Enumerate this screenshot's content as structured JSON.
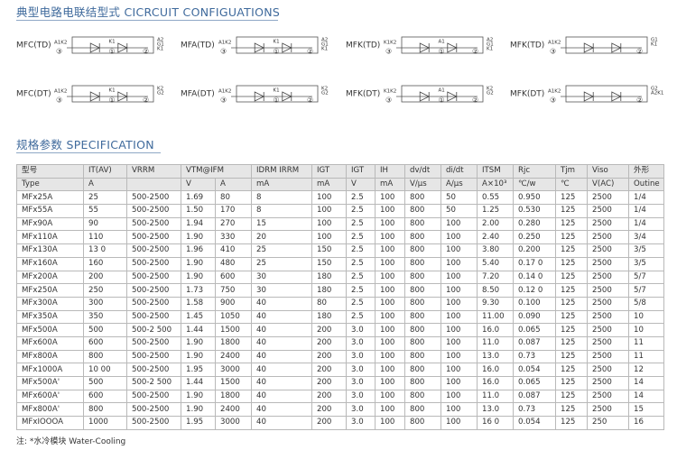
{
  "header": {
    "circuit_title": "典型电路电联结型式 CICRCUIT CONFIGUATIONS",
    "spec_title": "规格参数 SPECIFICATION"
  },
  "circuits": [
    {
      "label": "MFC(TD)",
      "left": "A1K2",
      "mid": "K1",
      "right": [
        "A2",
        "G1",
        "K1"
      ],
      "nums": [
        "③",
        "①",
        "②"
      ]
    },
    {
      "label": "MFA(TD)",
      "left": "A1K2",
      "mid": "K1",
      "right": [
        "A2",
        "G1",
        "K1"
      ],
      "nums": [
        "③",
        "①",
        "②"
      ]
    },
    {
      "label": "MFK(TD)",
      "left": "K1K2",
      "mid": "A1",
      "right": [
        "A2",
        "G1",
        "K1"
      ],
      "nums": [
        "③",
        "①",
        "②"
      ]
    },
    {
      "label": "MFK(TD)",
      "left": "A1K2",
      "right": [
        "G1",
        "K1"
      ],
      "nums": [
        "③",
        "②"
      ]
    },
    {
      "label": "MFC(DT)",
      "left": "A1K2",
      "mid": "K1",
      "right": [
        "K2",
        "G2"
      ],
      "nums": [
        "③",
        "①",
        "②"
      ]
    },
    {
      "label": "MFA(DT)",
      "left": "A1K2",
      "mid": "K1",
      "right": [
        "K2",
        "G2"
      ],
      "nums": [
        "③",
        "①",
        "②"
      ]
    },
    {
      "label": "MFK(DT)",
      "left": "K1K2",
      "mid": "A1",
      "right": [
        "K2",
        "G2"
      ],
      "nums": [
        "③",
        "①",
        "②"
      ]
    },
    {
      "label": "MFK(DT)",
      "left": "A1K2",
      "right": [
        "G2",
        "A2K1"
      ],
      "nums": [
        "③",
        "②"
      ]
    }
  ],
  "table": {
    "header_top": [
      "型号",
      "IT(AV)",
      "VRRM",
      "VTM@IFM",
      "IDRM IRRM",
      "IGT",
      "IGT",
      "IH",
      "dv/dt",
      "di/dt",
      "ITSM",
      "Rjc",
      "Tjm",
      "Viso",
      "外形"
    ],
    "header_units": [
      "Type",
      "A",
      null,
      "V",
      "A",
      "mA",
      "mA",
      "V",
      "mA",
      "V/μs",
      "A/μs",
      "A×10³",
      "℃/w",
      "℃",
      "V(AC)",
      "Outine"
    ],
    "rows": [
      [
        "MFx25A",
        "25",
        "500-2500",
        "1.69",
        "80",
        "8",
        "100",
        "2.5",
        "100",
        "800",
        "50",
        "0.55",
        "0.950",
        "125",
        "2500",
        "1/4"
      ],
      [
        "MFx55A",
        "55",
        "500-2500",
        "1.50",
        "170",
        "8",
        "100",
        "2.5",
        "100",
        "800",
        "50",
        "1.25",
        "0.530",
        "125",
        "2500",
        "1/4"
      ],
      [
        "MFx90A",
        "90",
        "500-2500",
        "1.94",
        "270",
        "15",
        "100",
        "2.5",
        "100",
        "800",
        "100",
        "2.00",
        "0.280",
        "125",
        "2500",
        "1/4"
      ],
      [
        "MFx110A",
        "110",
        "500-2500",
        "1.90",
        "330",
        "20",
        "100",
        "2.5",
        "100",
        "800",
        "100",
        "2.40",
        "0.250",
        "125",
        "2500",
        "3/4"
      ],
      [
        "MFx130A",
        "13 0",
        "500-2500",
        "1.96",
        "410",
        "25",
        "150",
        "2.5",
        "100",
        "800",
        "100",
        "3.80",
        "0.200",
        "125",
        "2500",
        "3/5"
      ],
      [
        "MFx160A",
        "160",
        "500-2500",
        "1.90",
        "480",
        "25",
        "150",
        "2.5",
        "100",
        "800",
        "100",
        "5.40",
        "0.17 0",
        "125",
        "2500",
        "3/5"
      ],
      [
        "MFx200A",
        "200",
        "500-2500",
        "1.90",
        "600",
        "30",
        "180",
        "2.5",
        "100",
        "800",
        "100",
        "7.20",
        "0.14 0",
        "125",
        "2500",
        "5/7"
      ],
      [
        "MFx250A",
        "250",
        "500-2500",
        "1.73",
        "750",
        "30",
        "180",
        "2.5",
        "100",
        "800",
        "100",
        "8.50",
        "0.12 0",
        "125",
        "2500",
        "5/7"
      ],
      [
        "MFx300A",
        "300",
        "500-2500",
        "1.58",
        "900",
        "40",
        "80",
        "2.5",
        "100",
        "800",
        "100",
        "9.30",
        "0.100",
        "125",
        "2500",
        "5/8"
      ],
      [
        "MFx350A",
        "350",
        "500-2500",
        "1.45",
        "1050",
        "40",
        "180",
        "2.5",
        "100",
        "800",
        "100",
        "11.00",
        "0.090",
        "125",
        "2500",
        "10"
      ],
      [
        "MFx500A",
        "500",
        "500-2 500",
        "1.44",
        "1500",
        "40",
        "200",
        "3.0",
        "100",
        "800",
        "100",
        "16.0",
        "0.065",
        "125",
        "2500",
        "10"
      ],
      [
        "MFx600A",
        "600",
        "500-2500",
        "1.90",
        "1800",
        "40",
        "200",
        "3.0",
        "100",
        "800",
        "100",
        "11.0",
        "0.087",
        "125",
        "2500",
        "11"
      ],
      [
        "MFx800A",
        "800",
        "500-2500",
        "1.90",
        "2400",
        "40",
        "200",
        "3.0",
        "100",
        "800",
        "100",
        "13.0",
        "0.73",
        "125",
        "2500",
        "11"
      ],
      [
        "MFx1000A",
        "10 00",
        "500-2500",
        "1.95",
        "3000",
        "40",
        "200",
        "3.0",
        "100",
        "800",
        "100",
        "16.0",
        "0.054",
        "125",
        "2500",
        "12"
      ],
      [
        "MFx500A'",
        "500",
        "500-2 500",
        "1.44",
        "1500",
        "40",
        "200",
        "3.0",
        "100",
        "800",
        "100",
        "16.0",
        "0.065",
        "125",
        "2500",
        "14"
      ],
      [
        "MFx600A'",
        "600",
        "500-2500",
        "1.90",
        "1800",
        "40",
        "200",
        "3.0",
        "100",
        "800",
        "100",
        "11.0",
        "0.087",
        "125",
        "2500",
        "14"
      ],
      [
        "MFx800A'",
        "800",
        "500-2500",
        "1.90",
        "2400",
        "40",
        "200",
        "3.0",
        "100",
        "800",
        "100",
        "13.0",
        "0.73",
        "125",
        "2500",
        "15"
      ],
      [
        "MFxIOOOA",
        "1000",
        "500-2500",
        "1.95",
        "3000",
        "40",
        "200",
        "3.0",
        "100",
        "800",
        "100",
        "16 0",
        "0.054",
        "125",
        "250",
        "16"
      ]
    ]
  },
  "footnote": "注: *水冷模块 Water-Cooling"
}
